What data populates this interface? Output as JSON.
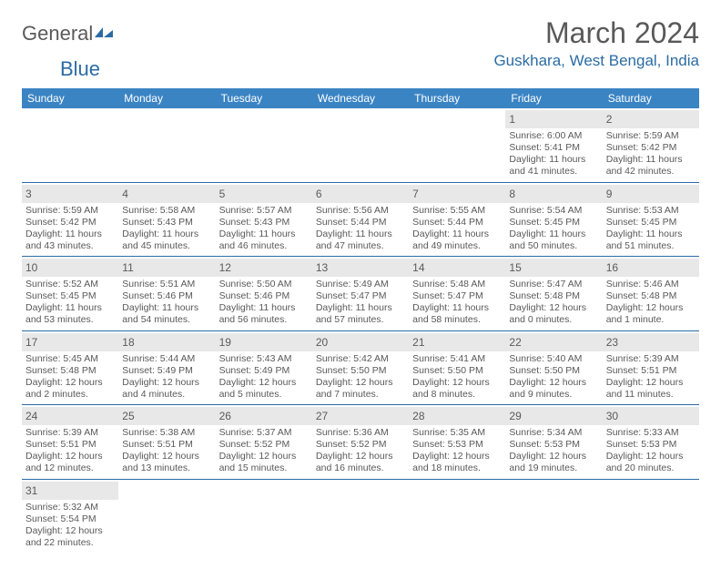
{
  "logo": {
    "text1": "General",
    "text2": "Blue",
    "iconColor": "#2b6ca3"
  },
  "title": "March 2024",
  "location": "Guskhara, West Bengal, India",
  "colors": {
    "headerBg": "#3b84c4",
    "accent": "#2b6ca3",
    "dayStripe": "#e8e8e8",
    "text": "#595959"
  },
  "dayNames": [
    "Sunday",
    "Monday",
    "Tuesday",
    "Wednesday",
    "Thursday",
    "Friday",
    "Saturday"
  ],
  "weeks": [
    [
      null,
      null,
      null,
      null,
      null,
      {
        "n": "1",
        "sr": "Sunrise: 6:00 AM",
        "ss": "Sunset: 5:41 PM",
        "dl1": "Daylight: 11 hours",
        "dl2": "and 41 minutes."
      },
      {
        "n": "2",
        "sr": "Sunrise: 5:59 AM",
        "ss": "Sunset: 5:42 PM",
        "dl1": "Daylight: 11 hours",
        "dl2": "and 42 minutes."
      }
    ],
    [
      {
        "n": "3",
        "sr": "Sunrise: 5:59 AM",
        "ss": "Sunset: 5:42 PM",
        "dl1": "Daylight: 11 hours",
        "dl2": "and 43 minutes."
      },
      {
        "n": "4",
        "sr": "Sunrise: 5:58 AM",
        "ss": "Sunset: 5:43 PM",
        "dl1": "Daylight: 11 hours",
        "dl2": "and 45 minutes."
      },
      {
        "n": "5",
        "sr": "Sunrise: 5:57 AM",
        "ss": "Sunset: 5:43 PM",
        "dl1": "Daylight: 11 hours",
        "dl2": "and 46 minutes."
      },
      {
        "n": "6",
        "sr": "Sunrise: 5:56 AM",
        "ss": "Sunset: 5:44 PM",
        "dl1": "Daylight: 11 hours",
        "dl2": "and 47 minutes."
      },
      {
        "n": "7",
        "sr": "Sunrise: 5:55 AM",
        "ss": "Sunset: 5:44 PM",
        "dl1": "Daylight: 11 hours",
        "dl2": "and 49 minutes."
      },
      {
        "n": "8",
        "sr": "Sunrise: 5:54 AM",
        "ss": "Sunset: 5:45 PM",
        "dl1": "Daylight: 11 hours",
        "dl2": "and 50 minutes."
      },
      {
        "n": "9",
        "sr": "Sunrise: 5:53 AM",
        "ss": "Sunset: 5:45 PM",
        "dl1": "Daylight: 11 hours",
        "dl2": "and 51 minutes."
      }
    ],
    [
      {
        "n": "10",
        "sr": "Sunrise: 5:52 AM",
        "ss": "Sunset: 5:45 PM",
        "dl1": "Daylight: 11 hours",
        "dl2": "and 53 minutes."
      },
      {
        "n": "11",
        "sr": "Sunrise: 5:51 AM",
        "ss": "Sunset: 5:46 PM",
        "dl1": "Daylight: 11 hours",
        "dl2": "and 54 minutes."
      },
      {
        "n": "12",
        "sr": "Sunrise: 5:50 AM",
        "ss": "Sunset: 5:46 PM",
        "dl1": "Daylight: 11 hours",
        "dl2": "and 56 minutes."
      },
      {
        "n": "13",
        "sr": "Sunrise: 5:49 AM",
        "ss": "Sunset: 5:47 PM",
        "dl1": "Daylight: 11 hours",
        "dl2": "and 57 minutes."
      },
      {
        "n": "14",
        "sr": "Sunrise: 5:48 AM",
        "ss": "Sunset: 5:47 PM",
        "dl1": "Daylight: 11 hours",
        "dl2": "and 58 minutes."
      },
      {
        "n": "15",
        "sr": "Sunrise: 5:47 AM",
        "ss": "Sunset: 5:48 PM",
        "dl1": "Daylight: 12 hours",
        "dl2": "and 0 minutes."
      },
      {
        "n": "16",
        "sr": "Sunrise: 5:46 AM",
        "ss": "Sunset: 5:48 PM",
        "dl1": "Daylight: 12 hours",
        "dl2": "and 1 minute."
      }
    ],
    [
      {
        "n": "17",
        "sr": "Sunrise: 5:45 AM",
        "ss": "Sunset: 5:48 PM",
        "dl1": "Daylight: 12 hours",
        "dl2": "and 2 minutes."
      },
      {
        "n": "18",
        "sr": "Sunrise: 5:44 AM",
        "ss": "Sunset: 5:49 PM",
        "dl1": "Daylight: 12 hours",
        "dl2": "and 4 minutes."
      },
      {
        "n": "19",
        "sr": "Sunrise: 5:43 AM",
        "ss": "Sunset: 5:49 PM",
        "dl1": "Daylight: 12 hours",
        "dl2": "and 5 minutes."
      },
      {
        "n": "20",
        "sr": "Sunrise: 5:42 AM",
        "ss": "Sunset: 5:50 PM",
        "dl1": "Daylight: 12 hours",
        "dl2": "and 7 minutes."
      },
      {
        "n": "21",
        "sr": "Sunrise: 5:41 AM",
        "ss": "Sunset: 5:50 PM",
        "dl1": "Daylight: 12 hours",
        "dl2": "and 8 minutes."
      },
      {
        "n": "22",
        "sr": "Sunrise: 5:40 AM",
        "ss": "Sunset: 5:50 PM",
        "dl1": "Daylight: 12 hours",
        "dl2": "and 9 minutes."
      },
      {
        "n": "23",
        "sr": "Sunrise: 5:39 AM",
        "ss": "Sunset: 5:51 PM",
        "dl1": "Daylight: 12 hours",
        "dl2": "and 11 minutes."
      }
    ],
    [
      {
        "n": "24",
        "sr": "Sunrise: 5:39 AM",
        "ss": "Sunset: 5:51 PM",
        "dl1": "Daylight: 12 hours",
        "dl2": "and 12 minutes."
      },
      {
        "n": "25",
        "sr": "Sunrise: 5:38 AM",
        "ss": "Sunset: 5:51 PM",
        "dl1": "Daylight: 12 hours",
        "dl2": "and 13 minutes."
      },
      {
        "n": "26",
        "sr": "Sunrise: 5:37 AM",
        "ss": "Sunset: 5:52 PM",
        "dl1": "Daylight: 12 hours",
        "dl2": "and 15 minutes."
      },
      {
        "n": "27",
        "sr": "Sunrise: 5:36 AM",
        "ss": "Sunset: 5:52 PM",
        "dl1": "Daylight: 12 hours",
        "dl2": "and 16 minutes."
      },
      {
        "n": "28",
        "sr": "Sunrise: 5:35 AM",
        "ss": "Sunset: 5:53 PM",
        "dl1": "Daylight: 12 hours",
        "dl2": "and 18 minutes."
      },
      {
        "n": "29",
        "sr": "Sunrise: 5:34 AM",
        "ss": "Sunset: 5:53 PM",
        "dl1": "Daylight: 12 hours",
        "dl2": "and 19 minutes."
      },
      {
        "n": "30",
        "sr": "Sunrise: 5:33 AM",
        "ss": "Sunset: 5:53 PM",
        "dl1": "Daylight: 12 hours",
        "dl2": "and 20 minutes."
      }
    ],
    [
      {
        "n": "31",
        "sr": "Sunrise: 5:32 AM",
        "ss": "Sunset: 5:54 PM",
        "dl1": "Daylight: 12 hours",
        "dl2": "and 22 minutes."
      },
      null,
      null,
      null,
      null,
      null,
      null
    ]
  ]
}
